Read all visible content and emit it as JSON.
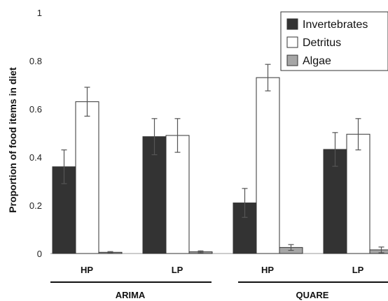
{
  "chart_data": {
    "type": "bar",
    "title": "",
    "xlabel": "",
    "ylabel": "Proportion of food items in diet",
    "ylim": [
      0,
      1
    ],
    "yticks": [
      "0",
      "0.2",
      "0.4",
      "0.6",
      "0.8",
      "1"
    ],
    "categories": [
      "HP",
      "LP",
      "HP",
      "LP"
    ],
    "groups": [
      {
        "label": "ARIMA",
        "categories": [
          0,
          1
        ]
      },
      {
        "label": "QUARE",
        "categories": [
          2,
          3
        ]
      }
    ],
    "series": [
      {
        "name": "Invertebrates",
        "color": "#333333",
        "values": [
          0.36,
          0.485,
          0.21,
          0.432
        ],
        "errors": [
          0.07,
          0.075,
          0.06,
          0.07
        ]
      },
      {
        "name": "Detritus",
        "color": "#ffffff",
        "values": [
          0.63,
          0.49,
          0.73,
          0.495
        ],
        "errors": [
          0.06,
          0.07,
          0.055,
          0.065
        ]
      },
      {
        "name": "Algae",
        "color": "#a6a6a6",
        "values": [
          0.005,
          0.007,
          0.025,
          0.015
        ],
        "errors": [
          0.003,
          0.004,
          0.012,
          0.012
        ]
      }
    ],
    "legend_position": "top-right",
    "grid": false
  }
}
